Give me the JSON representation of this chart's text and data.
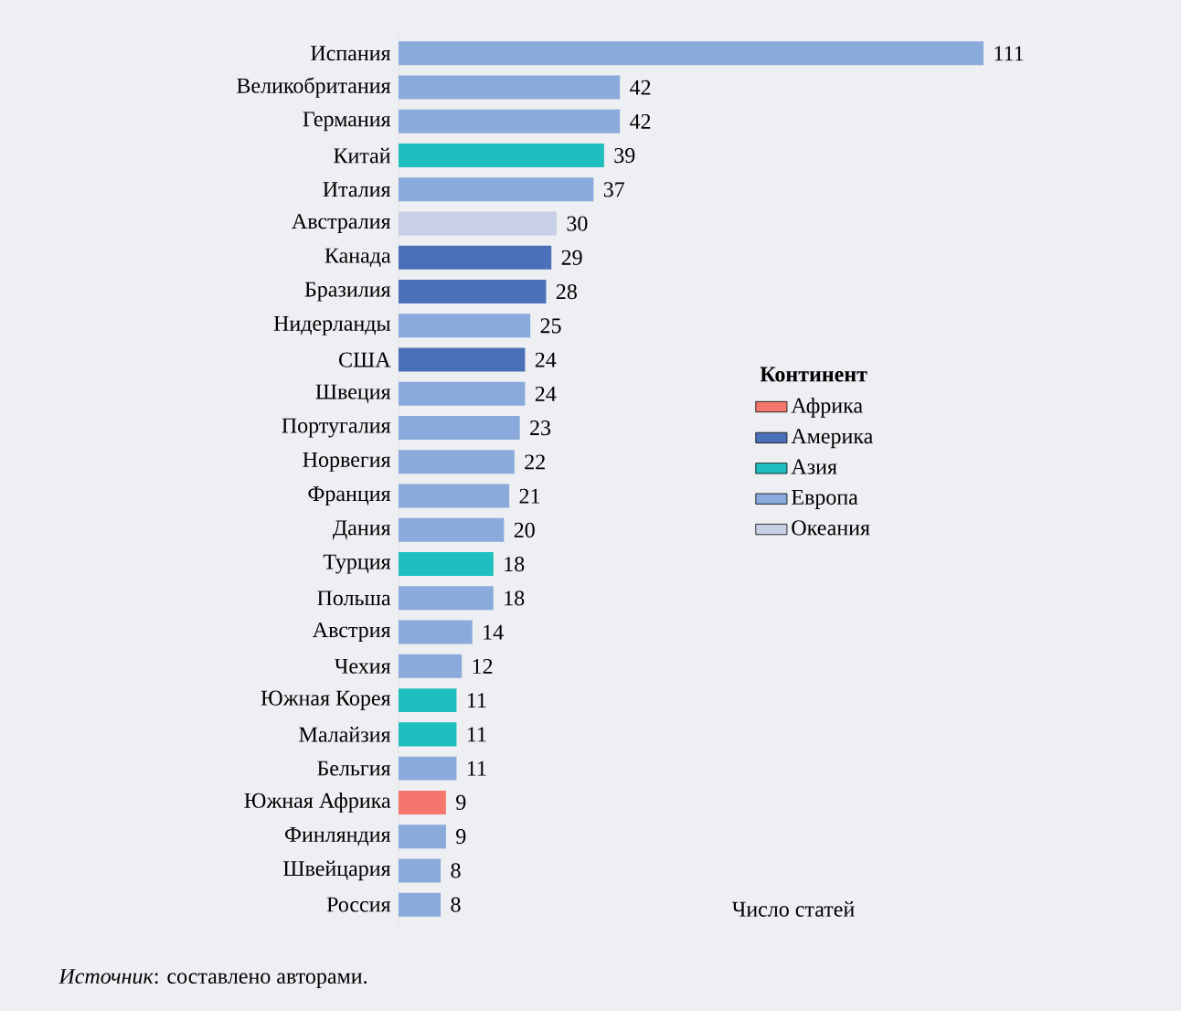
{
  "chart_data": {
    "type": "bar",
    "orientation": "horizontal",
    "tick_labels": "y",
    "data_labels": true,
    "legend": "right",
    "legend_title": "Континент",
    "xlabel": "Число статей",
    "categories": [
      "Испания",
      "Великобритания",
      "Германия",
      "Китай",
      "Италия",
      "Австралия",
      "Канада",
      "Бразилия",
      "Нидерланды",
      "США",
      "Швеция",
      "Португалия",
      "Норвегия",
      "Франция",
      "Дания",
      "Турция",
      "Польша",
      "Австрия",
      "Чехия",
      "Южная Корея",
      "Малайзия",
      "Бельгия",
      "Южная Африка",
      "Финляндия",
      "Швейцария",
      "Россия"
    ],
    "series": [
      {
        "name": "Африка",
        "color": "#f4766c",
        "values": [
          null,
          null,
          null,
          null,
          null,
          null,
          null,
          null,
          null,
          null,
          null,
          null,
          null,
          null,
          null,
          null,
          null,
          null,
          null,
          null,
          null,
          null,
          9,
          null,
          null,
          null
        ]
      },
      {
        "name": "Америка",
        "color": "#4a70b8",
        "values": [
          null,
          null,
          null,
          null,
          null,
          null,
          29,
          28,
          null,
          24,
          null,
          null,
          null,
          null,
          null,
          null,
          null,
          null,
          null,
          null,
          null,
          null,
          null,
          null,
          null,
          null
        ]
      },
      {
        "name": "Азия",
        "color": "#20bfbf",
        "values": [
          null,
          null,
          null,
          39,
          null,
          null,
          null,
          null,
          null,
          null,
          null,
          null,
          null,
          null,
          null,
          18,
          null,
          null,
          null,
          11,
          11,
          null,
          null,
          null,
          null,
          null
        ]
      },
      {
        "name": "Европа",
        "color": "#8aaadc",
        "values": [
          111,
          42,
          42,
          null,
          37,
          null,
          null,
          null,
          25,
          null,
          24,
          23,
          22,
          21,
          20,
          null,
          18,
          14,
          12,
          null,
          null,
          11,
          null,
          9,
          8,
          8
        ]
      },
      {
        "name": "Океания",
        "color": "#c8d0e6",
        "values": [
          null,
          null,
          null,
          null,
          null,
          30,
          null,
          null,
          null,
          null,
          null,
          null,
          null,
          null,
          null,
          null,
          null,
          null,
          null,
          null,
          null,
          null,
          null,
          null,
          null,
          null
        ]
      }
    ],
    "annotations": [
      "*Источник*: составлено авторами."
    ]
  }
}
